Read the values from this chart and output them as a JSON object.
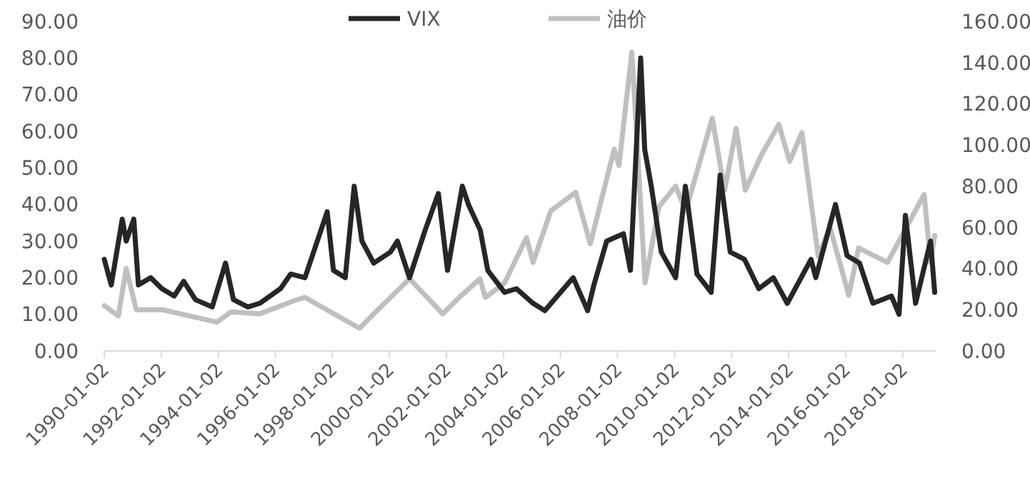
{
  "chart_data": {
    "type": "line",
    "x": [
      "1990-01-02",
      "1990-04-01",
      "1990-08-20",
      "1990-10-10",
      "1991-01-15",
      "1991-03-15",
      "1991-08-19",
      "1992-01-10",
      "1992-06-15",
      "1992-10-15",
      "1993-03-15",
      "1993-10-15",
      "1994-04-04",
      "1994-07-15",
      "1995-01-15",
      "1995-06-15",
      "1996-03-08",
      "1996-07-16",
      "1997-01-15",
      "1997-10-27",
      "1998-01-15",
      "1998-06-15",
      "1998-10-08",
      "1999-01-15",
      "1999-06-15",
      "2000-01-15",
      "2000-04-14",
      "2000-09-15",
      "2001-04-04",
      "2001-09-20",
      "2002-01-15",
      "2002-07-24",
      "2002-10-10",
      "2003-03-10",
      "2003-06-15",
      "2004-01-15",
      "2004-06-15",
      "2005-01-15",
      "2005-06-15",
      "2006-06-13",
      "2006-12-15",
      "2007-03-05",
      "2007-08-16",
      "2008-03-17",
      "2008-06-15",
      "2008-10-24",
      "2008-12-15",
      "2009-03-09",
      "2009-07-15",
      "2010-01-15",
      "2010-05-20",
      "2010-10-15",
      "2011-04-15",
      "2011-08-08",
      "2011-12-15",
      "2012-06-15",
      "2012-12-15",
      "2013-06-20",
      "2013-12-15",
      "2014-10-15",
      "2014-12-15",
      "2015-08-24",
      "2016-01-20",
      "2016-06-27",
      "2016-12-15",
      "2017-08-10",
      "2017-11-15",
      "2018-02-05",
      "2018-06-15",
      "2018-12-24",
      "2019-02-15"
    ],
    "xlim": [
      "1990-01-02",
      "2019-02-28"
    ],
    "xticks": [
      "1990-01-02",
      "1992-01-02",
      "1994-01-02",
      "1996-01-02",
      "1998-01-02",
      "2000-01-02",
      "2002-01-02",
      "2004-01-02",
      "2006-01-02",
      "2008-01-02",
      "2010-01-02",
      "2012-01-02",
      "2014-01-02",
      "2016-01-02",
      "2018-01-02"
    ],
    "ylim": [
      0,
      90
    ],
    "yticks": [
      {
        "value": 0,
        "label": "0.00"
      },
      {
        "value": 10,
        "label": "10.00"
      },
      {
        "value": 20,
        "label": "20.00"
      },
      {
        "value": 30,
        "label": "30.00"
      },
      {
        "value": 40,
        "label": "40.00"
      },
      {
        "value": 50,
        "label": "50.00"
      },
      {
        "value": 60,
        "label": "60.00"
      },
      {
        "value": 70,
        "label": "70.00"
      },
      {
        "value": 80,
        "label": "80.00"
      },
      {
        "value": 90,
        "label": "90.00"
      }
    ],
    "y2lim": [
      0,
      160
    ],
    "y2ticks": [
      {
        "value": 0,
        "label": "0.00"
      },
      {
        "value": 20,
        "label": "20.00"
      },
      {
        "value": 40,
        "label": "40.00"
      },
      {
        "value": 60,
        "label": "60.00"
      },
      {
        "value": 80,
        "label": "80.00"
      },
      {
        "value": 100,
        "label": "100.00"
      },
      {
        "value": 120,
        "label": "120.00"
      },
      {
        "value": 140,
        "label": "140.00"
      },
      {
        "value": 160,
        "label": "160.00"
      }
    ],
    "grid": false,
    "legend": "top",
    "marker": "none",
    "line_style": "solid",
    "series": [
      {
        "name": "VIX",
        "color": "#262626",
        "values": [
          25,
          18,
          36,
          30,
          36,
          18,
          20,
          17,
          15,
          19,
          14,
          12,
          24,
          14,
          12,
          13,
          17,
          21,
          20,
          38,
          22,
          20,
          45,
          30,
          24,
          27,
          30,
          20,
          33,
          43,
          22,
          45,
          40,
          33,
          22,
          16,
          17,
          13,
          11,
          20,
          11,
          18,
          30,
          32,
          22,
          80,
          55,
          45,
          27,
          20,
          45,
          21,
          16,
          48,
          27,
          25,
          17,
          20,
          13,
          25,
          20,
          40,
          26,
          24,
          13,
          15,
          10,
          37,
          13,
          30,
          16
        ]
      },
      {
        "name": "油价",
        "color": "#bfbfbf",
        "axis": "y2",
        "x": [
          "1990-01-02",
          "1990-07-01",
          "1990-10-10",
          "1991-02-15",
          "1992-01-15",
          "1993-12-15",
          "1994-06-15",
          "1995-06-15",
          "1996-10-15",
          "1997-01-15",
          "1998-12-15",
          "1999-06-15",
          "2000-09-15",
          "2001-11-15",
          "2002-06-15",
          "2003-03-07",
          "2003-05-15",
          "2004-01-15",
          "2004-10-22",
          "2005-01-15",
          "2005-08-30",
          "2006-07-15",
          "2007-01-18",
          "2007-11-20",
          "2008-01-20",
          "2008-07-03",
          "2008-12-20",
          "2009-06-15",
          "2010-01-15",
          "2010-05-25",
          "2011-04-29",
          "2011-10-04",
          "2012-03-01",
          "2012-06-25",
          "2013-01-15",
          "2013-08-28",
          "2014-01-15",
          "2014-06-20",
          "2015-01-15",
          "2015-06-15",
          "2016-02-11",
          "2016-06-15",
          "2017-06-20",
          "2018-10-03",
          "2018-12-24",
          "2019-02-15"
        ],
        "values": [
          22,
          17,
          40,
          20,
          20,
          14,
          19,
          18,
          25,
          26,
          11,
          18,
          35,
          18,
          26,
          35,
          26,
          33,
          55,
          43,
          68,
          77,
          52,
          98,
          90,
          145,
          33,
          70,
          80,
          68,
          113,
          78,
          108,
          78,
          95,
          110,
          92,
          106,
          46,
          60,
          27,
          50,
          43,
          76,
          43,
          56
        ]
      }
    ]
  }
}
